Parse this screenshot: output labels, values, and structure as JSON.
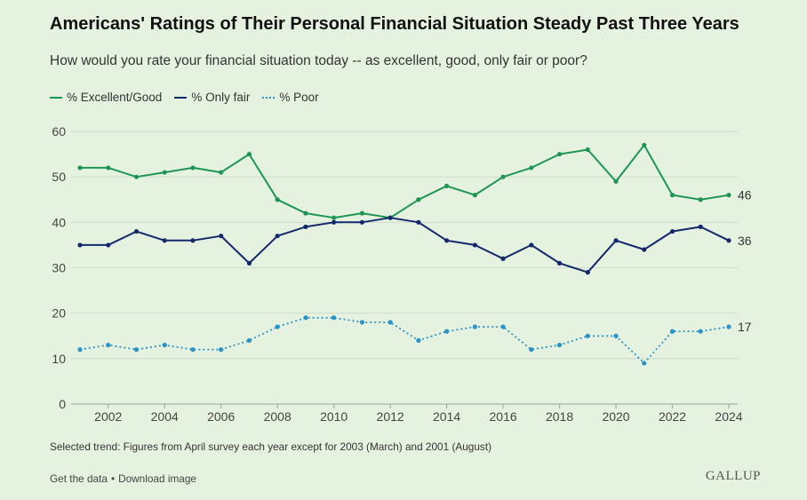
{
  "header": {
    "title": "Americans' Ratings of Their Personal Financial Situation Steady Past Three Years",
    "subtitle": "How would you rate your financial situation today -- as excellent, good, only fair or poor?"
  },
  "legend": {
    "items": [
      {
        "label": "% Excellent/Good"
      },
      {
        "label": "% Only fair"
      },
      {
        "label": "% Poor"
      }
    ]
  },
  "colors": {
    "excellent_good": "#1e9653",
    "only_fair": "#13296b",
    "poor": "#2a93c7",
    "grid": "#cfdccb",
    "axis_text": "#444444"
  },
  "chart_data": {
    "type": "line",
    "title": "Americans' Ratings of Their Personal Financial Situation Steady Past Three Years",
    "subtitle": "How would you rate your financial situation today -- as excellent, good, only fair or poor?",
    "xlabel": "",
    "ylabel": "",
    "x": [
      2001,
      2002,
      2003,
      2004,
      2005,
      2006,
      2007,
      2008,
      2009,
      2010,
      2011,
      2012,
      2013,
      2014,
      2015,
      2016,
      2017,
      2018,
      2019,
      2020,
      2021,
      2022,
      2023,
      2024
    ],
    "x_ticks": [
      2002,
      2004,
      2006,
      2008,
      2010,
      2012,
      2014,
      2016,
      2018,
      2020,
      2022,
      2024
    ],
    "y_ticks": [
      0,
      10,
      20,
      30,
      40,
      50,
      60
    ],
    "xlim": [
      2001,
      2024
    ],
    "ylim": [
      0,
      60
    ],
    "grid": "horizontal",
    "legend_position": "top-left",
    "end_labels": true,
    "series": [
      {
        "name": "% Excellent/Good",
        "style": "solid",
        "values": [
          52,
          52,
          50,
          51,
          52,
          51,
          55,
          45,
          42,
          41,
          42,
          41,
          45,
          48,
          46,
          50,
          52,
          55,
          56,
          49,
          57,
          46,
          45,
          46
        ]
      },
      {
        "name": "% Only fair",
        "style": "solid",
        "values": [
          35,
          35,
          38,
          36,
          36,
          37,
          31,
          37,
          39,
          40,
          40,
          41,
          40,
          36,
          35,
          32,
          35,
          31,
          29,
          36,
          34,
          38,
          39,
          36
        ]
      },
      {
        "name": "% Poor",
        "style": "dotted",
        "values": [
          12,
          13,
          12,
          13,
          12,
          12,
          14,
          17,
          19,
          19,
          18,
          18,
          14,
          16,
          17,
          17,
          12,
          13,
          15,
          15,
          9,
          16,
          16,
          17
        ]
      }
    ]
  },
  "note": "Selected trend: Figures from April survey each year except for 2003 (March) and 2001 (August)",
  "footer": {
    "get_data": "Get the data",
    "separator": "•",
    "download": "Download image",
    "brand": "GALLUP"
  }
}
